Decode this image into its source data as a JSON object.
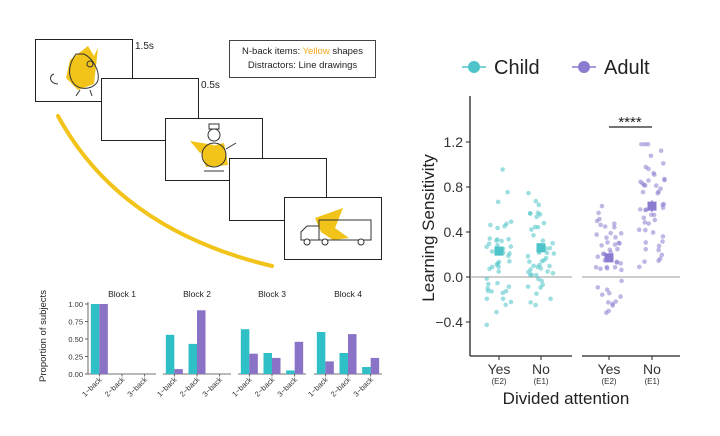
{
  "task": {
    "time_labels": [
      "1.5s",
      "0.5s"
    ],
    "note": {
      "line1_prefix": "N-back items: ",
      "line1_highlight": "Yellow",
      "line1_suffix": " shapes",
      "line2": "Distractors: Line drawings"
    },
    "colors": {
      "yellow": "#f2c318",
      "arc": "#f2c318"
    }
  },
  "chart_data": [
    {
      "type": "bar",
      "ylabel": "Proportion of subjects",
      "categories": [
        "1−back",
        "2−back",
        "3−back"
      ],
      "yticks": [
        "1.00",
        "0.75",
        "0.50",
        "0.25",
        "0.00"
      ],
      "ylim": [
        0,
        1
      ],
      "colors": {
        "child": "#2fbfc6",
        "adult": "#8a72c6"
      },
      "panels": [
        {
          "title": "Block 1",
          "child": [
            1.0,
            0.0,
            0.0
          ],
          "adult": [
            1.0,
            0.0,
            0.0
          ]
        },
        {
          "title": "Block 2",
          "child": [
            0.56,
            0.43,
            0.0
          ],
          "adult": [
            0.07,
            0.91,
            0.0
          ]
        },
        {
          "title": "Block 3",
          "child": [
            0.64,
            0.3,
            0.05
          ],
          "adult": [
            0.29,
            0.23,
            0.46
          ]
        },
        {
          "title": "Block 4",
          "child": [
            0.6,
            0.3,
            0.1
          ],
          "adult": [
            0.18,
            0.57,
            0.23
          ]
        }
      ]
    },
    {
      "type": "scatter",
      "ylabel": "Learning Sensitivity",
      "xlabel": "Divided attention",
      "legend": [
        "Child",
        "Adult"
      ],
      "legend_position": "top",
      "ylim": [
        -0.7,
        1.5
      ],
      "yticks": [
        "1.2",
        "0.8",
        "0.4",
        "0.0",
        "−0.4"
      ],
      "categories": [
        {
          "label": "Yes",
          "sub": "(E2)",
          "group": "Child",
          "mean": 0.23,
          "err": 0.04
        },
        {
          "label": "No",
          "sub": "(E1)",
          "group": "Child",
          "mean": 0.26,
          "err": 0.04
        },
        {
          "label": "Yes",
          "sub": "(E2)",
          "group": "Adult",
          "mean": 0.17,
          "err": 0.035
        },
        {
          "label": "No",
          "sub": "(E1)",
          "group": "Adult",
          "mean": 0.63,
          "err": 0.05
        }
      ],
      "significance": "****",
      "colors": {
        "child": "#4cc4c9",
        "adult": "#8d7bd0"
      }
    }
  ]
}
